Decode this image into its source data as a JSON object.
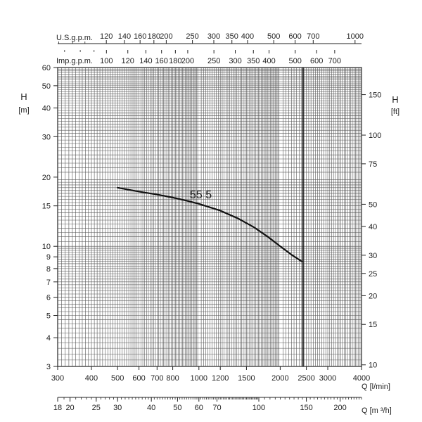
{
  "chart_data": {
    "type": "line",
    "x_scale": "log",
    "y_scale": "log",
    "series": [
      {
        "name": "55 5",
        "q_l_min": [
          500,
          600,
          700,
          800,
          900,
          1000,
          1200,
          1400,
          1600,
          1800,
          2000,
          2200,
          2400
        ],
        "h_m": [
          18.0,
          17.3,
          16.8,
          16.3,
          15.8,
          15.3,
          14.3,
          13.2,
          12.1,
          11.0,
          10.0,
          9.2,
          8.6
        ]
      }
    ],
    "axes": {
      "q_lmin": {
        "label": "Q [l/min]",
        "range": [
          300,
          4000
        ],
        "ticks": [
          300,
          400,
          500,
          600,
          700,
          800,
          1000,
          1200,
          1500,
          2000,
          2500,
          3000,
          4000
        ]
      },
      "q_m3h": {
        "label": "Q [m ³/h]",
        "ticks": [
          18,
          20,
          25,
          30,
          40,
          50,
          60,
          70,
          100,
          150,
          200
        ]
      },
      "usgpm": {
        "label": "U.S.g.p.m.",
        "ticks": [
          120,
          140,
          160,
          180,
          200,
          250,
          300,
          350,
          400,
          500,
          600,
          700,
          1000
        ]
      },
      "impgpm": {
        "label": "Imp.g.p.m.",
        "ticks": [
          100,
          120,
          140,
          160,
          180,
          200,
          250,
          300,
          350,
          400,
          500,
          600,
          700
        ]
      },
      "h_m": {
        "label_top": "H",
        "label_unit": "[m]",
        "range": [
          3,
          60
        ],
        "ticks": [
          3,
          4,
          5,
          6,
          7,
          8,
          9,
          10,
          15,
          20,
          30,
          40,
          50,
          60
        ]
      },
      "h_ft": {
        "label_top": "H",
        "label_unit": "[ft]",
        "ticks": [
          10,
          15,
          20,
          25,
          30,
          40,
          50,
          75,
          100,
          150
        ]
      }
    },
    "grid": true,
    "vertical_marker_q_lmin": 2430,
    "curve_label": "55 5"
  }
}
